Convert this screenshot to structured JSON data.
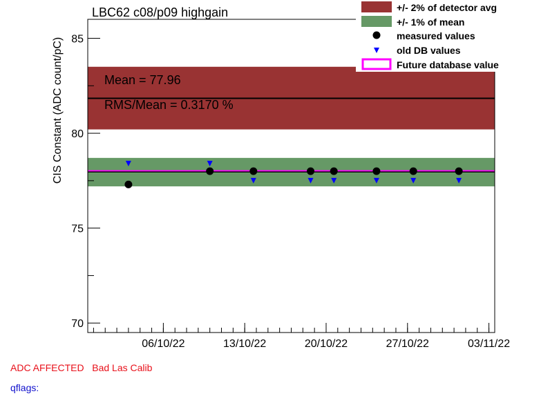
{
  "chart_data": {
    "type": "scatter",
    "title": "LBC62 c08/p09 highgain",
    "xlabel": "",
    "ylabel": "CIS Constant (ADC count/pC)",
    "ylim": [
      69.5,
      86.0
    ],
    "xlim": [
      "2022-09-29 12:00",
      "2022-11-03 12:00"
    ],
    "x_ticks": [
      "2022-10-06",
      "2022-10-13",
      "2022-10-20",
      "2022-10-27",
      "2022-11-03"
    ],
    "x_tick_labels": [
      "06/10/22",
      "13/10/22",
      "20/10/22",
      "27/10/22",
      "03/11/22"
    ],
    "y_ticks": [
      70,
      75,
      80,
      85
    ],
    "y_tick_labels": [
      "70",
      "75",
      "80",
      "85"
    ],
    "detector_avg": 81.84,
    "detector_band": [
      80.2,
      83.5
    ],
    "mean": 77.96,
    "mean_band": [
      77.2,
      78.7
    ],
    "future_value": 78.0,
    "series": [
      {
        "name": "measured values",
        "x": [
          "2022-10-03",
          "2022-10-10",
          "2022-10-13 18:00",
          "2022-10-18 16:00",
          "2022-10-20 16:00",
          "2022-10-24 08:00",
          "2022-10-27 12:00",
          "2022-10-31 10:00"
        ],
        "values": [
          77.3,
          78.0,
          78.0,
          78.0,
          78.0,
          78.0,
          78.0,
          78.0
        ]
      },
      {
        "name": "old DB values",
        "x": [
          "2022-10-03",
          "2022-10-10",
          "2022-10-13 18:00",
          "2022-10-18 16:00",
          "2022-10-20 16:00",
          "2022-10-24 08:00",
          "2022-10-27 12:00",
          "2022-10-31 10:00"
        ],
        "values": [
          78.4,
          78.4,
          77.5,
          77.5,
          77.5,
          77.5,
          77.5,
          77.5
        ]
      }
    ],
    "legend": {
      "position": "top-right",
      "entries": [
        {
          "label": "+/- 2% of detector avg",
          "color": "#993333"
        },
        {
          "label": "+/- 1% of mean",
          "color": "#669966"
        },
        {
          "label": "measured values",
          "color": "#000000"
        },
        {
          "label": "old DB values",
          "color": "#0000ff"
        },
        {
          "label": "Future database value",
          "color": "#ff00ff"
        }
      ]
    },
    "annotations": {
      "mean_text": "Mean = 77.96",
      "rms_text": "RMS/Mean = 0.3170 %"
    },
    "grid": false,
    "colors": {
      "detector_band": "#993333",
      "mean_band": "#669966",
      "measured": "#000000",
      "old_db": "#0000ff",
      "future": "#ff00ff"
    }
  },
  "footer": {
    "flags": "ADC AFFECTED   Bad Las Calib",
    "qflags": "qflags:"
  }
}
